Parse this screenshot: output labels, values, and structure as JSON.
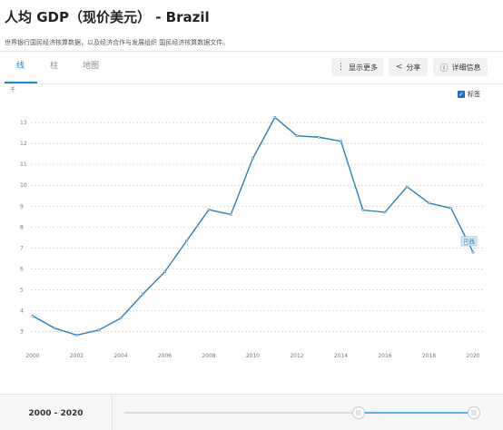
{
  "header": {
    "title": "人均 GDP（现价美元） - Brazil",
    "subtitle": "世界银行国民经济核算数据，以及经济合作与发展组织 国民经济核算数据文件。"
  },
  "tabs": [
    {
      "label": "线",
      "active": true
    },
    {
      "label": "柱",
      "active": false
    },
    {
      "label": "地图",
      "active": false
    }
  ],
  "toolbar": {
    "show_more": "显示更多",
    "share": "分享",
    "details": "详细信息",
    "show_more_icon": "vertical-dots-icon",
    "share_icon": "share-icon",
    "details_icon": "info-icon"
  },
  "legend": {
    "label": "标签",
    "checked": true
  },
  "chart_data": {
    "type": "line",
    "y_unit_label": "千",
    "x_ticks": [
      "2000",
      "2002",
      "2004",
      "2006",
      "2008",
      "2010",
      "2012",
      "2014",
      "2016",
      "2018",
      "2020"
    ],
    "y_ticks": [
      3,
      4,
      5,
      6,
      7,
      8,
      9,
      10,
      11,
      12,
      13
    ],
    "ylim": [
      2.5,
      13.7
    ],
    "xlim": [
      2000,
      2020
    ],
    "grid": true,
    "series": [
      {
        "name": "巴西",
        "color": "#2f7fb8",
        "x": [
          2000,
          2001,
          2002,
          2003,
          2004,
          2005,
          2006,
          2007,
          2008,
          2009,
          2010,
          2011,
          2012,
          2013,
          2014,
          2015,
          2016,
          2017,
          2018,
          2019,
          2020
        ],
        "values": [
          3.75,
          3.16,
          2.83,
          3.07,
          3.64,
          4.79,
          5.86,
          7.35,
          8.83,
          8.6,
          11.29,
          13.25,
          12.37,
          12.3,
          12.11,
          8.81,
          8.71,
          9.93,
          9.15,
          8.9,
          6.8
        ]
      }
    ],
    "end_label": "巴西"
  },
  "footer": {
    "range_start": "2000",
    "range_sep": " - ",
    "range_end": "2020",
    "slider_start_fraction": 0.67,
    "slider_end_fraction": 1.0
  }
}
